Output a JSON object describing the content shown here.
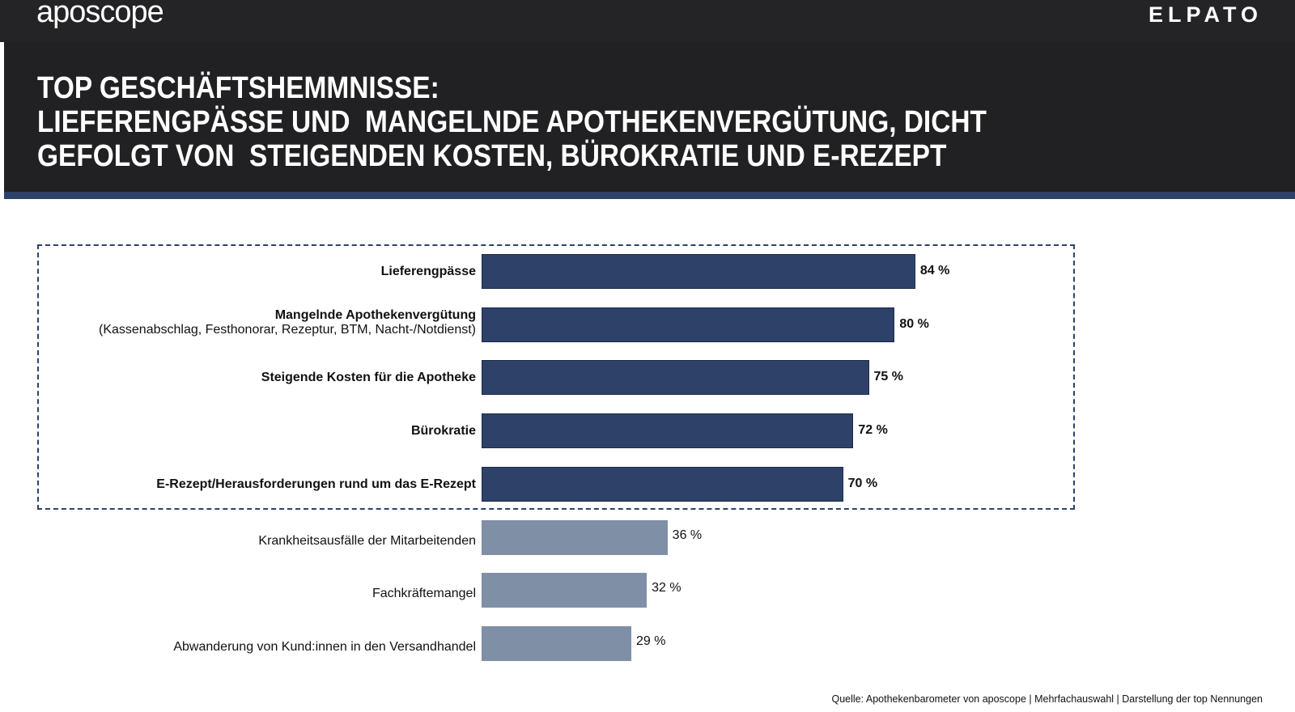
{
  "header": {
    "logo_left": "aposcope",
    "logo_right": "ELPATO",
    "title": "TOP GESCHÄFTSHEMMNISSE:\nLIEFERENGPÄSSE UND  MANGELNDE APOTHEKENVERGÜTUNG, DICHT\nGEFOLGT VON  STEIGENDEN KOSTEN, BÜROKRATIE UND E-REZEPT"
  },
  "colors": {
    "highlight": "#2e4269",
    "other": "#7f8fa6",
    "header_bg": "#212123"
  },
  "chart_data": {
    "type": "bar",
    "orientation": "horizontal",
    "unit": "%",
    "categories": [
      "Lieferengpässe",
      "Mangelnde Apothekenvergütung",
      "Steigende Kosten für die Apotheke",
      "Bürokratie",
      "E-Rezept/Herausforderungen rund um das E-Rezept",
      "Krankheitsausfälle der Mitarbeitenden",
      "Fachkräftemangel",
      "Abwanderung von Kund:innen in den Versandhandel"
    ],
    "sublabels": [
      "",
      "(Kassenabschlag, Festhonorar, Rezeptur, BTM, Nacht-/Notdienst)",
      "",
      "",
      "",
      "",
      "",
      ""
    ],
    "values": [
      84,
      80,
      75,
      72,
      70,
      36,
      32,
      29
    ],
    "value_labels": [
      "84 %",
      "80 %",
      "75 %",
      "72 %",
      "70 %",
      "36 %",
      "32 %",
      "29 %"
    ],
    "highlighted": [
      true,
      true,
      true,
      true,
      true,
      false,
      false,
      false
    ],
    "grid": false
  },
  "source": "Quelle: Apothekenbarometer von aposcope | Mehrfachauswahl | Darstellung der top Nennungen"
}
